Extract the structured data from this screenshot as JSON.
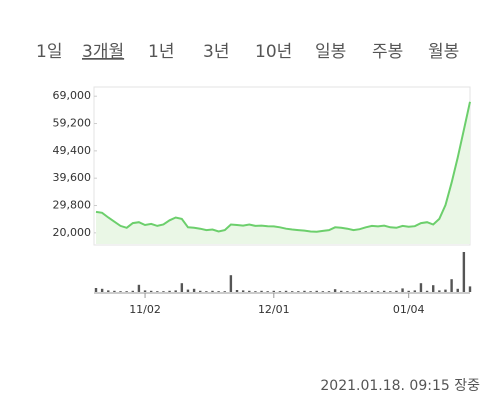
{
  "tabs": [
    "1일",
    "3개월",
    "1년",
    "3년",
    "10년",
    "일봉",
    "주봉",
    "월봉"
  ],
  "selected_tab": 1,
  "chart_data": {
    "type": "line",
    "categories": [
      null,
      null,
      null,
      null,
      null,
      null,
      null,
      null,
      "11/02",
      null,
      null,
      null,
      null,
      null,
      null,
      null,
      null,
      null,
      null,
      null,
      null,
      null,
      null,
      null,
      null,
      null,
      null,
      null,
      null,
      "12/01",
      null,
      null,
      null,
      null,
      null,
      null,
      null,
      null,
      null,
      null,
      null,
      null,
      null,
      null,
      null,
      null,
      null,
      null,
      null,
      null,
      null,
      "01/04",
      null,
      null,
      null,
      null,
      null,
      null,
      null,
      null,
      null,
      null
    ],
    "values": [
      27500,
      27200,
      25500,
      24000,
      22500,
      21800,
      23500,
      23800,
      22800,
      23200,
      22500,
      23000,
      24500,
      25500,
      25000,
      22000,
      21800,
      21500,
      21000,
      21200,
      20500,
      21000,
      23000,
      22800,
      22600,
      23000,
      22500,
      22600,
      22400,
      22300,
      22000,
      21500,
      21200,
      21000,
      20800,
      20500,
      20400,
      20700,
      21000,
      22000,
      21800,
      21500,
      21000,
      21300,
      22000,
      22500,
      22300,
      22600,
      22000,
      21800,
      22500,
      22200,
      22400,
      23500,
      23800,
      23000,
      25000,
      30000,
      38000,
      47000,
      57000,
      67000
    ],
    "color": "#6ccf6c",
    "fill_color": "#eaf7e6",
    "ylim": [
      16000,
      72300
    ],
    "yticks": [
      {
        "value": 20000,
        "label": "20,000"
      },
      {
        "value": 29800,
        "label": "29,800"
      },
      {
        "value": 39600,
        "label": "39,600"
      },
      {
        "value": 49400,
        "label": "49,400"
      },
      {
        "value": 59200,
        "label": "59,200"
      },
      {
        "value": 69000,
        "label": "69,000"
      }
    ],
    "volume": {
      "values": [
        10,
        8,
        4,
        3,
        2,
        2,
        3,
        18,
        4,
        3,
        2,
        2,
        3,
        4,
        22,
        6,
        8,
        3,
        2,
        3,
        2,
        2,
        42,
        5,
        4,
        3,
        2,
        3,
        2,
        3,
        2,
        3,
        2,
        2,
        3,
        2,
        3,
        2,
        2,
        7,
        3,
        2,
        2,
        3,
        2,
        3,
        2,
        3,
        2,
        3,
        9,
        3,
        4,
        22,
        3,
        17,
        4,
        6,
        32,
        8,
        100,
        14
      ],
      "color": "#555555",
      "ylim": [
        0,
        100
      ]
    }
  },
  "footer": "2021.01.18. 09:15 장중"
}
